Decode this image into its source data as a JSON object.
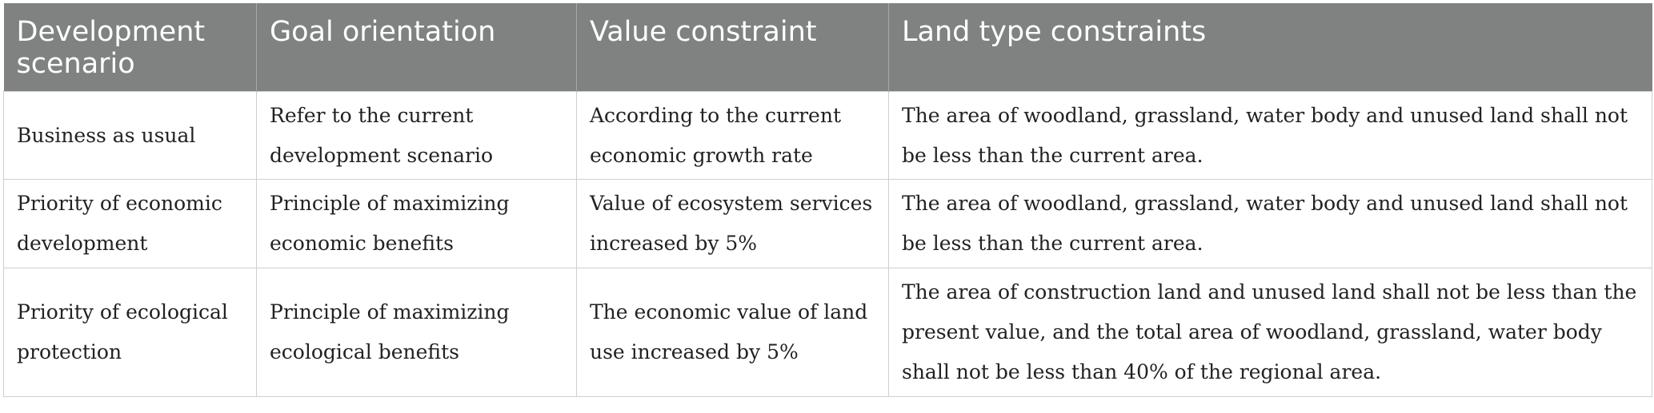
{
  "table": {
    "headers": [
      "Development scenario",
      "Goal orientation",
      "Value constraint",
      "Land type constraints"
    ],
    "rows": [
      {
        "scenario": "Business as usual",
        "goal": "Refer to the current development scenario",
        "value": "According to the current economic growth rate",
        "land": "The area of woodland, grassland, water body and unused land shall not be less than the current area."
      },
      {
        "scenario": "Priority of economic development",
        "goal": "Principle of maximizing economic benefits",
        "value": "Value of ecosystem services increased by 5%",
        "land": "The area of woodland, grassland, water body and unused land shall not be less than the current area."
      },
      {
        "scenario": "Priority of ecological protection",
        "goal": "Principle of maximizing ecological benefits",
        "value": "The economic value of land use increased by 5%",
        "land": "The area of construction land and unused land shall not be less than the present value, and the total area of woodland, grassland, water body shall not be less than 40% of the regional area."
      }
    ]
  }
}
